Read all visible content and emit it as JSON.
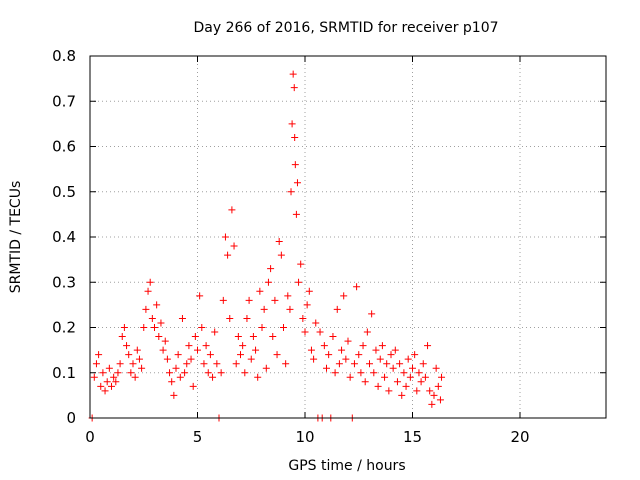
{
  "chart_data": {
    "type": "scatter",
    "title": "Day 266 of 2016, SRMTID for receiver p107",
    "xlabel": "GPS time / hours",
    "ylabel": "SRMTID / TECUs",
    "xlim": [
      0,
      24
    ],
    "ylim": [
      0,
      0.8
    ],
    "xticks": [
      "0",
      "5",
      "10",
      "15",
      "20"
    ],
    "yticks": [
      "0",
      "0.1",
      "0.2",
      "0.3",
      "0.4",
      "0.5",
      "0.6",
      "0.7",
      "0.8"
    ],
    "grid": true,
    "marker": "plus",
    "color": "#ff0000",
    "series": [
      {
        "name": "SRMTID",
        "points": [
          [
            0.1,
            0.0
          ],
          [
            0.2,
            0.09
          ],
          [
            0.3,
            0.12
          ],
          [
            0.4,
            0.14
          ],
          [
            0.5,
            0.07
          ],
          [
            0.6,
            0.1
          ],
          [
            0.7,
            0.06
          ],
          [
            0.8,
            0.08
          ],
          [
            0.9,
            0.11
          ],
          [
            1.0,
            0.07
          ],
          [
            1.1,
            0.09
          ],
          [
            1.2,
            0.08
          ],
          [
            1.3,
            0.1
          ],
          [
            1.4,
            0.12
          ],
          [
            1.5,
            0.18
          ],
          [
            1.6,
            0.2
          ],
          [
            1.7,
            0.16
          ],
          [
            1.8,
            0.14
          ],
          [
            1.9,
            0.1
          ],
          [
            2.0,
            0.12
          ],
          [
            2.1,
            0.09
          ],
          [
            2.2,
            0.15
          ],
          [
            2.3,
            0.13
          ],
          [
            2.4,
            0.11
          ],
          [
            2.5,
            0.2
          ],
          [
            2.6,
            0.24
          ],
          [
            2.7,
            0.28
          ],
          [
            2.8,
            0.3
          ],
          [
            2.9,
            0.22
          ],
          [
            3.0,
            0.2
          ],
          [
            3.1,
            0.25
          ],
          [
            3.2,
            0.18
          ],
          [
            3.3,
            0.21
          ],
          [
            3.4,
            0.15
          ],
          [
            3.5,
            0.17
          ],
          [
            3.6,
            0.13
          ],
          [
            3.7,
            0.1
          ],
          [
            3.8,
            0.08
          ],
          [
            3.9,
            0.05
          ],
          [
            4.0,
            0.11
          ],
          [
            4.1,
            0.14
          ],
          [
            4.2,
            0.09
          ],
          [
            4.3,
            0.22
          ],
          [
            4.4,
            0.1
          ],
          [
            4.5,
            0.12
          ],
          [
            4.6,
            0.16
          ],
          [
            4.7,
            0.13
          ],
          [
            4.8,
            0.07
          ],
          [
            4.9,
            0.18
          ],
          [
            5.0,
            0.15
          ],
          [
            5.1,
            0.27
          ],
          [
            5.2,
            0.2
          ],
          [
            5.3,
            0.12
          ],
          [
            5.4,
            0.16
          ],
          [
            5.5,
            0.1
          ],
          [
            5.6,
            0.14
          ],
          [
            5.7,
            0.09
          ],
          [
            5.8,
            0.19
          ],
          [
            5.9,
            0.12
          ],
          [
            6.0,
            0.0
          ],
          [
            6.1,
            0.1
          ],
          [
            6.2,
            0.26
          ],
          [
            6.3,
            0.4
          ],
          [
            6.4,
            0.36
          ],
          [
            6.5,
            0.22
          ],
          [
            6.6,
            0.46
          ],
          [
            6.7,
            0.38
          ],
          [
            6.8,
            0.12
          ],
          [
            6.9,
            0.18
          ],
          [
            7.0,
            0.14
          ],
          [
            7.1,
            0.16
          ],
          [
            7.2,
            0.1
          ],
          [
            7.3,
            0.22
          ],
          [
            7.4,
            0.26
          ],
          [
            7.5,
            0.13
          ],
          [
            7.6,
            0.18
          ],
          [
            7.7,
            0.15
          ],
          [
            7.8,
            0.09
          ],
          [
            7.9,
            0.28
          ],
          [
            8.0,
            0.2
          ],
          [
            8.1,
            0.24
          ],
          [
            8.2,
            0.11
          ],
          [
            8.3,
            0.3
          ],
          [
            8.4,
            0.33
          ],
          [
            8.5,
            0.18
          ],
          [
            8.6,
            0.26
          ],
          [
            8.7,
            0.14
          ],
          [
            8.8,
            0.39
          ],
          [
            8.9,
            0.36
          ],
          [
            9.0,
            0.2
          ],
          [
            9.1,
            0.12
          ],
          [
            9.2,
            0.27
          ],
          [
            9.3,
            0.24
          ],
          [
            9.35,
            0.5
          ],
          [
            9.4,
            0.65
          ],
          [
            9.45,
            0.76
          ],
          [
            9.5,
            0.73
          ],
          [
            9.52,
            0.62
          ],
          [
            9.55,
            0.56
          ],
          [
            9.6,
            0.45
          ],
          [
            9.65,
            0.52
          ],
          [
            9.7,
            0.3
          ],
          [
            9.8,
            0.34
          ],
          [
            9.9,
            0.22
          ],
          [
            10.0,
            0.19
          ],
          [
            10.1,
            0.25
          ],
          [
            10.2,
            0.28
          ],
          [
            10.3,
            0.15
          ],
          [
            10.4,
            0.13
          ],
          [
            10.5,
            0.21
          ],
          [
            10.6,
            0.0
          ],
          [
            10.7,
            0.19
          ],
          [
            10.8,
            0.0
          ],
          [
            10.9,
            0.16
          ],
          [
            11.0,
            0.11
          ],
          [
            11.1,
            0.14
          ],
          [
            11.2,
            0.0
          ],
          [
            11.3,
            0.18
          ],
          [
            11.4,
            0.1
          ],
          [
            11.5,
            0.24
          ],
          [
            11.6,
            0.12
          ],
          [
            11.7,
            0.15
          ],
          [
            11.8,
            0.27
          ],
          [
            11.9,
            0.13
          ],
          [
            12.0,
            0.17
          ],
          [
            12.1,
            0.09
          ],
          [
            12.2,
            0.0
          ],
          [
            12.3,
            0.12
          ],
          [
            12.4,
            0.29
          ],
          [
            12.5,
            0.14
          ],
          [
            12.6,
            0.1
          ],
          [
            12.7,
            0.16
          ],
          [
            12.8,
            0.08
          ],
          [
            12.9,
            0.19
          ],
          [
            13.0,
            0.12
          ],
          [
            13.1,
            0.23
          ],
          [
            13.2,
            0.1
          ],
          [
            13.3,
            0.15
          ],
          [
            13.4,
            0.07
          ],
          [
            13.5,
            0.13
          ],
          [
            13.6,
            0.16
          ],
          [
            13.7,
            0.09
          ],
          [
            13.8,
            0.12
          ],
          [
            13.9,
            0.06
          ],
          [
            14.0,
            0.14
          ],
          [
            14.1,
            0.11
          ],
          [
            14.2,
            0.15
          ],
          [
            14.3,
            0.08
          ],
          [
            14.4,
            0.12
          ],
          [
            14.5,
            0.05
          ],
          [
            14.6,
            0.1
          ],
          [
            14.7,
            0.07
          ],
          [
            14.8,
            0.13
          ],
          [
            14.9,
            0.09
          ],
          [
            15.0,
            0.11
          ],
          [
            15.1,
            0.14
          ],
          [
            15.2,
            0.06
          ],
          [
            15.3,
            0.1
          ],
          [
            15.4,
            0.08
          ],
          [
            15.5,
            0.12
          ],
          [
            15.6,
            0.09
          ],
          [
            15.7,
            0.16
          ],
          [
            15.8,
            0.06
          ],
          [
            15.9,
            0.03
          ],
          [
            16.0,
            0.05
          ],
          [
            16.1,
            0.11
          ],
          [
            16.2,
            0.07
          ],
          [
            16.3,
            0.04
          ],
          [
            16.35,
            0.09
          ]
        ]
      }
    ]
  }
}
